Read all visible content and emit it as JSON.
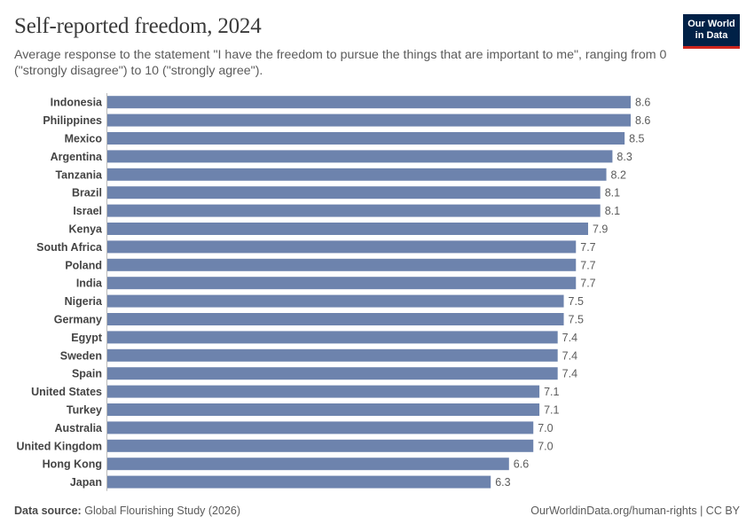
{
  "header": {
    "title": "Self-reported freedom, 2024",
    "subtitle": "Average response to the statement \"I have the freedom to pursue the things that are important to me\", ranging from 0 (\"strongly disagree\") to 10 (\"strongly agree\").",
    "logo_line1": "Our World",
    "logo_line2": "in Data"
  },
  "footer": {
    "source_label": "Data source:",
    "source_text": "Global Flourishing Study (2026)",
    "right_text": "OurWorldinData.org/human-rights | CC BY"
  },
  "colors": {
    "bar": "#6d83ad",
    "logo_bg": "#002147",
    "logo_accent": "#ce261e"
  },
  "chart_data": {
    "type": "bar",
    "orientation": "horizontal",
    "categories": [
      "Indonesia",
      "Philippines",
      "Mexico",
      "Argentina",
      "Tanzania",
      "Brazil",
      "Israel",
      "Kenya",
      "South Africa",
      "Poland",
      "India",
      "Nigeria",
      "Germany",
      "Egypt",
      "Sweden",
      "Spain",
      "United States",
      "Turkey",
      "Australia",
      "United Kingdom",
      "Hong Kong",
      "Japan"
    ],
    "values": [
      8.6,
      8.6,
      8.5,
      8.3,
      8.2,
      8.1,
      8.1,
      7.9,
      7.7,
      7.7,
      7.7,
      7.5,
      7.5,
      7.4,
      7.4,
      7.4,
      7.1,
      7.1,
      7.0,
      7.0,
      6.6,
      6.3
    ],
    "value_labels": [
      "8.6",
      "8.6",
      "8.5",
      "8.3",
      "8.2",
      "8.1",
      "8.1",
      "7.9",
      "7.7",
      "7.7",
      "7.7",
      "7.5",
      "7.5",
      "7.4",
      "7.4",
      "7.4",
      "7.1",
      "7.1",
      "7.0",
      "7.0",
      "6.6",
      "6.3"
    ],
    "xlim": [
      0,
      8.6
    ]
  }
}
